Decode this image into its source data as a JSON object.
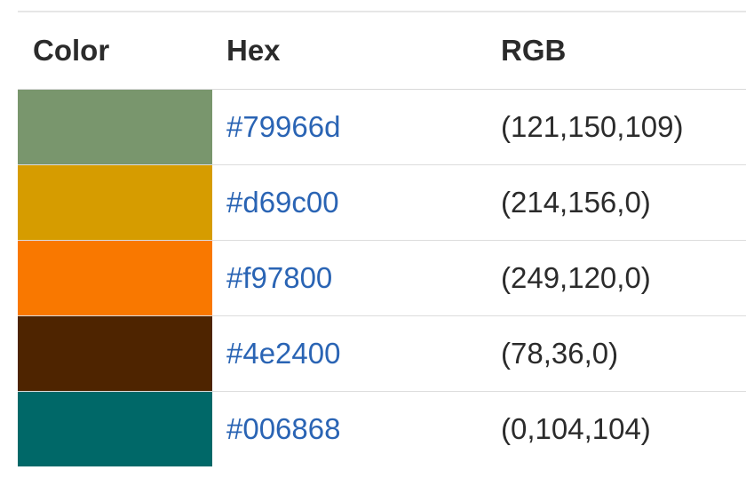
{
  "table": {
    "headers": {
      "color": "Color",
      "hex": "Hex",
      "rgb": "RGB"
    },
    "rows": [
      {
        "swatch_color": "#79966d",
        "hex": "#79966d",
        "rgb": "(121,150,109)"
      },
      {
        "swatch_color": "#d69c00",
        "hex": "#d69c00",
        "rgb": "(214,156,0)"
      },
      {
        "swatch_color": "#f97800",
        "hex": "#f97800",
        "rgb": "(249,120,0)"
      },
      {
        "swatch_color": "#4e2400",
        "hex": "#4e2400",
        "rgb": "(78,36,0)"
      },
      {
        "swatch_color": "#006868",
        "hex": "#006868",
        "rgb": "(0,104,104)"
      }
    ],
    "colors": {
      "link": "#2a64b4",
      "text": "#2b2b2b"
    }
  }
}
